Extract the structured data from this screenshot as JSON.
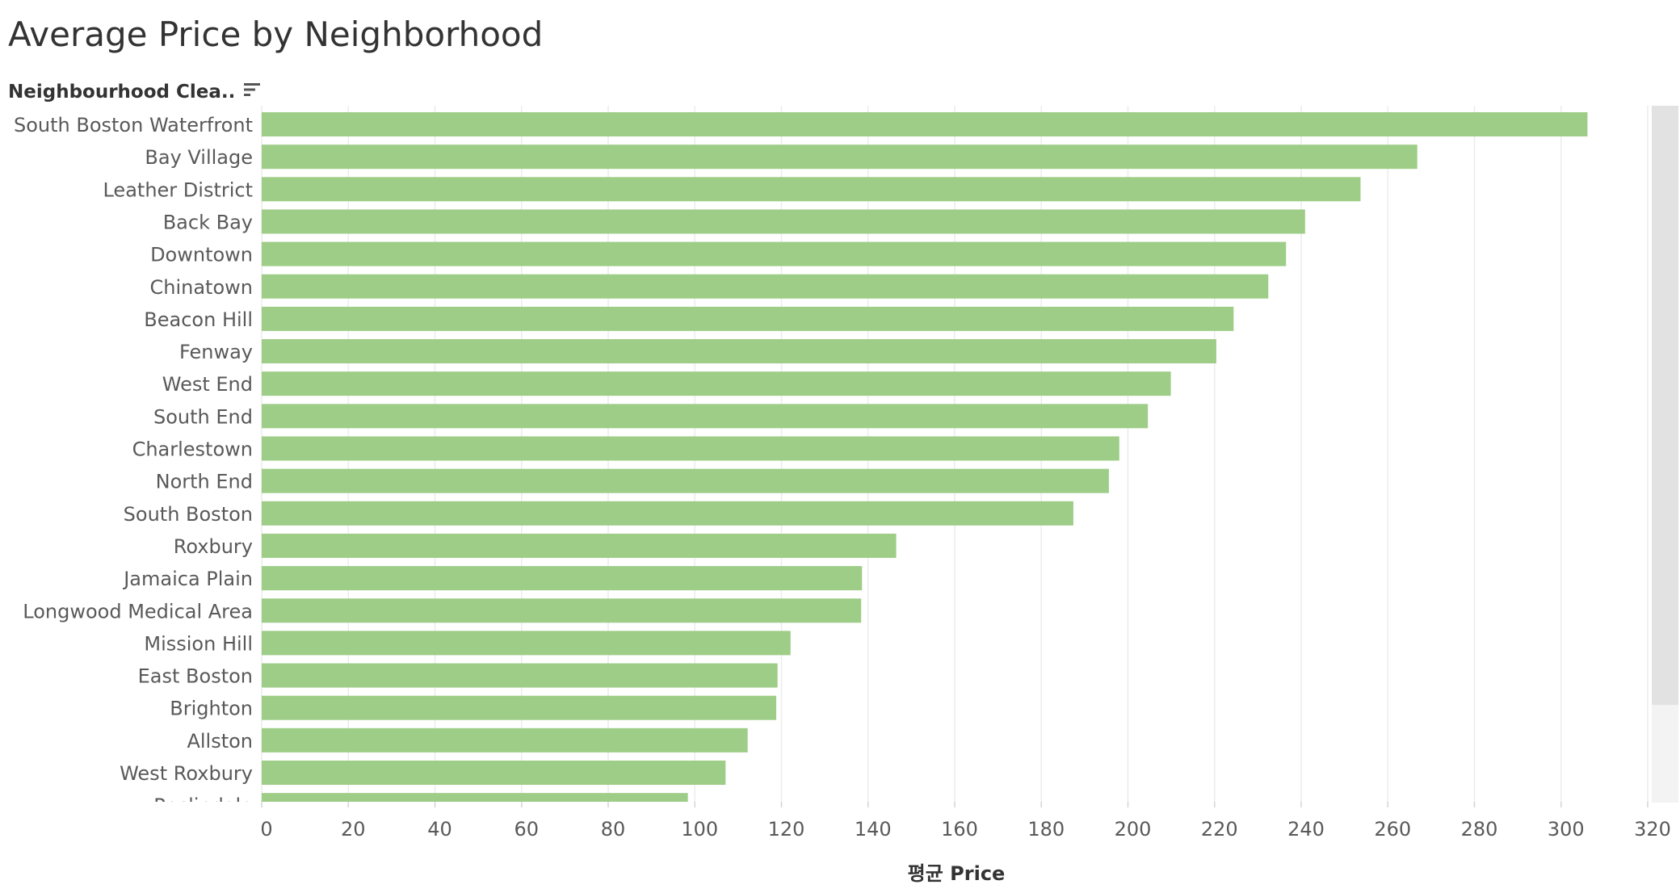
{
  "page": {
    "title": "Average Price by Neighborhood",
    "row_header": "Neighbourhood Clea.."
  },
  "colors": {
    "bar": "#9dcd86",
    "grid": "#ececec",
    "label": "#595959",
    "axis_title": "#333333"
  },
  "chart_data": {
    "type": "bar",
    "orientation": "horizontal",
    "title": "Average Price by Neighborhood",
    "xlabel": "평균 Price",
    "ylabel": "Neighbourhood Clea..",
    "xlim": [
      0,
      320
    ],
    "xticks": [
      0,
      20,
      40,
      60,
      80,
      100,
      120,
      140,
      160,
      180,
      200,
      220,
      240,
      260,
      280,
      300,
      320
    ],
    "grid": true,
    "categories": [
      "South Boston Waterfront",
      "Bay Village",
      "Leather District",
      "Back Bay",
      "Downtown",
      "Chinatown",
      "Beacon Hill",
      "Fenway",
      "West End",
      "South End",
      "Charlestown",
      "North End",
      "South Boston",
      "Roxbury",
      "Jamaica Plain",
      "Longwood Medical Area",
      "Mission Hill",
      "East Boston",
      "Brighton",
      "Allston",
      "West Roxbury",
      "Roslindale"
    ],
    "values": [
      306.1,
      266.8,
      253.7,
      240.9,
      236.5,
      232.4,
      224.4,
      220.4,
      209.9,
      204.6,
      198.0,
      195.6,
      187.4,
      146.5,
      138.6,
      138.4,
      122.1,
      119.1,
      118.8,
      112.2,
      107.1,
      98.4
    ]
  }
}
